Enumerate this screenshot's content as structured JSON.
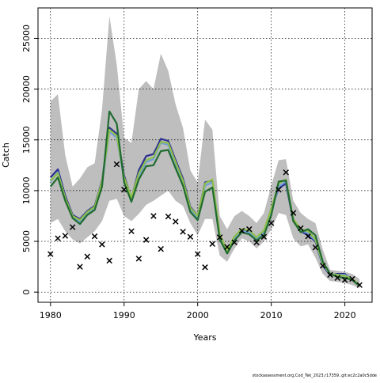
{
  "chart_data": {
    "type": "line",
    "xlabel": "Years",
    "ylabel": "Catch",
    "xlim": [
      1978.3,
      2023.7
    ],
    "ylim": [
      -1000,
      28000
    ],
    "x_ticks": [
      1980,
      1990,
      2000,
      2010,
      2020
    ],
    "y_ticks": [
      0,
      5000,
      10000,
      15000,
      20000,
      25000
    ],
    "grid": true,
    "years": [
      1980,
      1981,
      1982,
      1983,
      1984,
      1985,
      1986,
      1987,
      1988,
      1989,
      1990,
      1991,
      1992,
      1993,
      1994,
      1995,
      1996,
      1997,
      1998,
      1999,
      2000,
      2001,
      2002,
      2003,
      2004,
      2005,
      2006,
      2007,
      2008,
      2009,
      2010,
      2011,
      2012,
      2013,
      2014,
      2015,
      2016,
      2017,
      2018,
      2019,
      2020,
      2021,
      2022
    ],
    "band": {
      "upper": [
        18800,
        19500,
        13500,
        10400,
        11200,
        12300,
        12700,
        18000,
        27200,
        22400,
        15200,
        14700,
        20000,
        20800,
        20000,
        23500,
        21800,
        18500,
        16200,
        12000,
        10800,
        17000,
        16000,
        7500,
        6200,
        7500,
        8000,
        7500,
        6800,
        7800,
        10500,
        13000,
        13100,
        9000,
        7800,
        7200,
        6800,
        4200,
        2200,
        2100,
        2000,
        1800,
        1300
      ],
      "lower": [
        6800,
        7200,
        6000,
        5200,
        4800,
        5400,
        6000,
        7000,
        9000,
        9200,
        7500,
        7000,
        7700,
        8600,
        9000,
        9500,
        10000,
        9000,
        8500,
        6800,
        5600,
        7200,
        7200,
        3600,
        3000,
        4300,
        5300,
        5000,
        4300,
        5000,
        6200,
        7800,
        7600,
        5300,
        4500,
        4700,
        3400,
        1800,
        1100,
        1000,
        900,
        700,
        400
      ]
    },
    "series": [
      {
        "color": "#2b2f8f",
        "values": [
          11300,
          12100,
          9500,
          7600,
          7200,
          8000,
          8500,
          11000,
          16200,
          15600,
          11500,
          9200,
          12000,
          13400,
          13600,
          15100,
          14900,
          13000,
          11200,
          8400,
          7500,
          10800,
          11000,
          5600,
          4000,
          5400,
          6100,
          6000,
          5300,
          6000,
          8200,
          10200,
          10700,
          7000,
          6000,
          5600,
          5000,
          2600,
          1700,
          1800,
          1800,
          1200,
          700
        ]
      },
      {
        "color": "#6f9fd8",
        "values": [
          10900,
          11800,
          9200,
          7400,
          6900,
          7800,
          8300,
          10700,
          15800,
          15200,
          11200,
          9100,
          11500,
          12800,
          13100,
          14700,
          14500,
          12600,
          10800,
          8100,
          7300,
          10500,
          10800,
          5500,
          3900,
          5300,
          6000,
          5900,
          5200,
          5900,
          8000,
          10400,
          10900,
          7100,
          6100,
          5800,
          5100,
          2700,
          1800,
          1700,
          1700,
          1300,
          700
        ]
      },
      {
        "color": "#8fbf4a",
        "values": [
          11000,
          11700,
          9300,
          7500,
          7100,
          7900,
          8400,
          10900,
          16000,
          15400,
          11300,
          9300,
          11700,
          13000,
          13300,
          14800,
          14700,
          12800,
          11000,
          8300,
          7500,
          10700,
          11100,
          5700,
          4100,
          5500,
          6200,
          6100,
          5400,
          6100,
          8200,
          10700,
          11100,
          7200,
          6200,
          6000,
          5200,
          2800,
          1800,
          1700,
          1600,
          1300,
          700
        ]
      },
      {
        "color": "#1f6b2f",
        "values": [
          10400,
          11300,
          9000,
          7300,
          6700,
          7600,
          8100,
          10400,
          17800,
          16600,
          10800,
          8900,
          11100,
          12400,
          12500,
          13900,
          14000,
          12200,
          10500,
          7900,
          7100,
          9900,
          10300,
          5200,
          3800,
          5100,
          5900,
          5700,
          5100,
          5600,
          7600,
          10900,
          11000,
          7000,
          5900,
          6200,
          5600,
          3000,
          1800,
          1500,
          1400,
          1200,
          600
        ]
      }
    ],
    "observed": {
      "years": [
        1980,
        1981,
        1982,
        1983,
        1984,
        1985,
        1986,
        1987,
        1988,
        1989,
        1990,
        1991,
        1992,
        1993,
        1994,
        1995,
        1996,
        1997,
        1998,
        1999,
        2000,
        2001,
        2002,
        2003,
        2004,
        2005,
        2006,
        2007,
        2008,
        2009,
        2010,
        2011,
        2012,
        2013,
        2014,
        2015,
        2016,
        2017,
        2018,
        2019,
        2020,
        2021,
        2022
      ],
      "values": [
        3750,
        5300,
        5550,
        6400,
        2500,
        3500,
        5500,
        4700,
        3100,
        12600,
        10100,
        6000,
        3300,
        5150,
        7500,
        4250,
        7450,
        6950,
        5950,
        5450,
        3750,
        2450,
        4750,
        5400,
        4450,
        4900,
        6050,
        6200,
        4900,
        5450,
        6800,
        10100,
        11800,
        7800,
        6300,
        5500,
        4400,
        2600,
        1700,
        1400,
        1200,
        1300,
        700
      ]
    }
  },
  "footer": {
    "credit": "stockassessment.org,Cod_Tek_2023,r17359..git:ec2c2a0c5dde"
  }
}
